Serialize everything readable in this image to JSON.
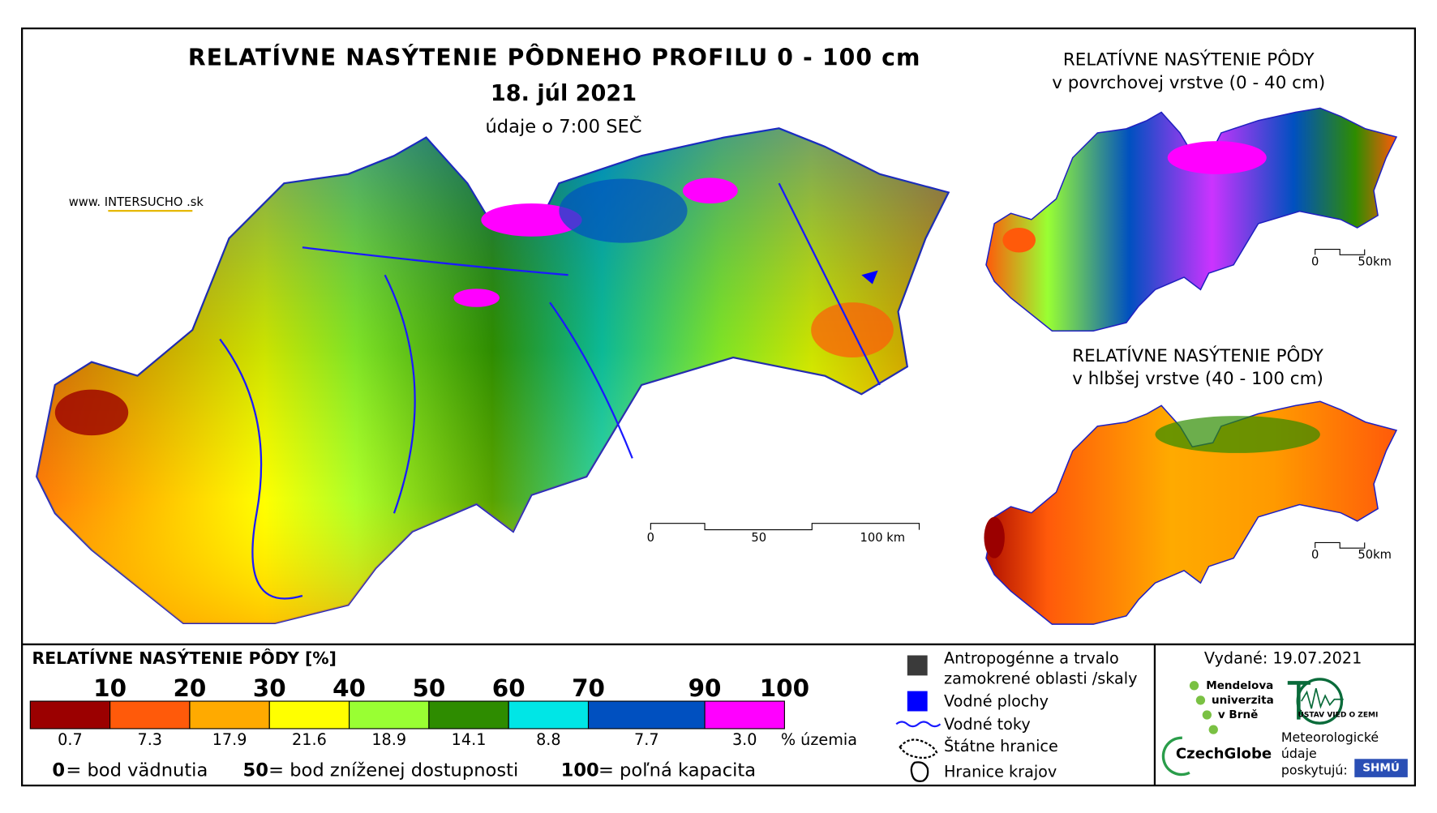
{
  "header": {
    "title": "RELATÍVNE NASÝTENIE PÔDNEHO PROFILU 0 - 100 cm",
    "date": "18. júl 2021",
    "time": "údaje o 7:00 SEČ",
    "source": "www. INTERSUCHO .sk"
  },
  "main_map": {
    "scale_labels": [
      "0",
      "50",
      "100 km"
    ]
  },
  "inset_top": {
    "title": "RELATÍVNE NASÝTENIE PÔDY",
    "subtitle": "v povrchovej vrstve (0 - 40 cm)",
    "scale_labels": [
      "0",
      "50km"
    ]
  },
  "inset_bottom": {
    "title": "RELATÍVNE NASÝTENIE PÔDY",
    "subtitle": "v hlbšej vrstve (40 - 100 cm)",
    "scale_labels": [
      "0",
      "50km"
    ]
  },
  "legend": {
    "title": "RELATÍVNE NASÝTENIE PÔDY [%]",
    "breaks": [
      10,
      20,
      30,
      40,
      50,
      60,
      70,
      90,
      100
    ],
    "classes": [
      {
        "color": "#9b0000",
        "share": 0.7
      },
      {
        "color": "#ff5a0a",
        "share": 7.3
      },
      {
        "color": "#ffaa00",
        "share": 17.9
      },
      {
        "color": "#ffff00",
        "share": 21.6
      },
      {
        "color": "#99ff33",
        "share": 18.9
      },
      {
        "color": "#2e8c00",
        "share": 14.1
      },
      {
        "color": "#00e6e6",
        "share": 8.8
      },
      {
        "color": "#0050c0",
        "share": 7.7
      },
      {
        "color": "#ff00ff",
        "share": 3.0,
        "share_label": "3.0"
      }
    ],
    "share_unit": "% územia",
    "notes": [
      {
        "value": 0,
        "text": "= bod vädnutia"
      },
      {
        "value": 50,
        "text": "= bod zníženej dostupnosti"
      },
      {
        "value": 100,
        "text": "= poľná kapacita"
      }
    ]
  },
  "map_legend": [
    "Antropogénne a trvalo",
    "zamokrené oblasti /skaly",
    "Vodné plochy",
    "Vodné toky",
    "Štátne hranice",
    "Hranice krajov"
  ],
  "issued": "Vydané: 19.07.2021",
  "logos": {
    "mendel": [
      "Mendelova",
      "univerzita",
      "v Brně"
    ],
    "czechglobe": "CzechGlobe",
    "uvz": "ÚSTAV VIED O ZEMI",
    "providers": [
      "Meteorologické",
      "údaje",
      "poskytujú:"
    ],
    "shmu": "SHMÚ"
  }
}
